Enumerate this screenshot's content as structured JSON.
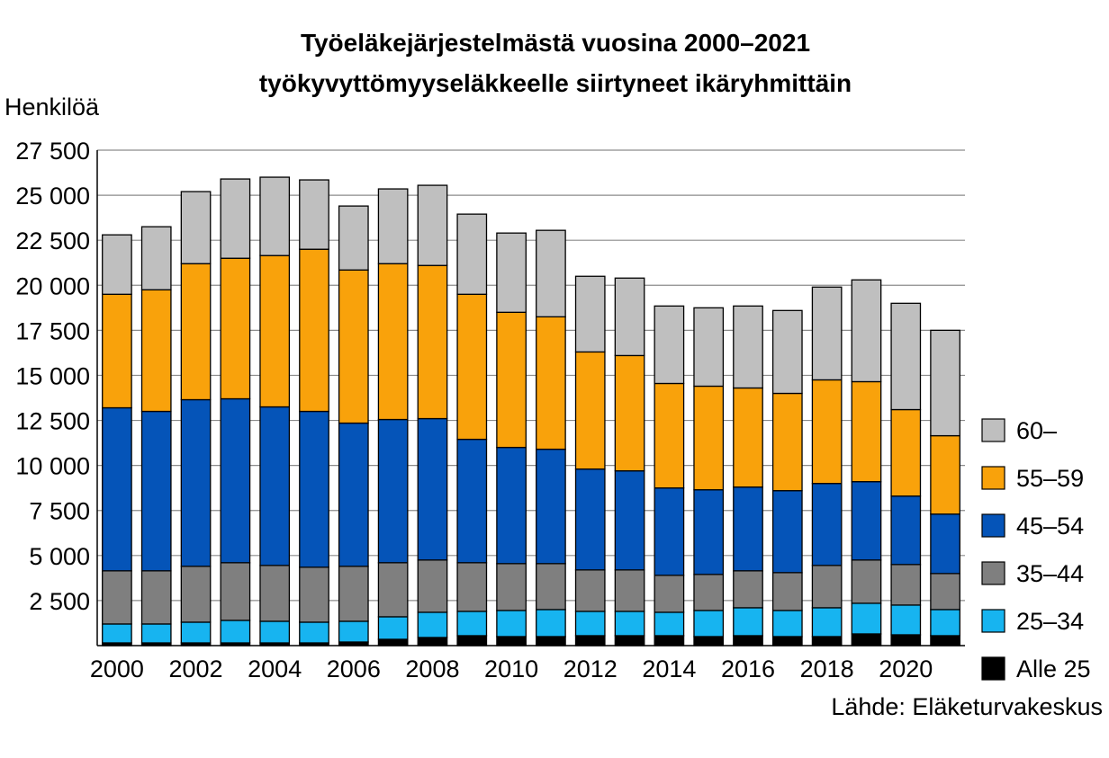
{
  "chart_data": {
    "type": "bar",
    "stacked": true,
    "title_lines": [
      "Työeläkejärjestelmästä vuosina 2000–2021",
      "työkyvyttömyyseläkkeelle siirtyneet ikäryhmittäin"
    ],
    "ylabel": "Henkilöä",
    "xlabel": "",
    "ylim": [
      0,
      27500
    ],
    "ytick_values": [
      2500,
      5000,
      7500,
      10000,
      12500,
      15000,
      17500,
      20000,
      22500,
      25000,
      27500
    ],
    "ytick_labels": [
      "2 500",
      "5 000",
      "7 500",
      "10 000",
      "12 500",
      "15 000",
      "17 500",
      "20 000",
      "22 500",
      "25 000",
      "27 500"
    ],
    "grid": true,
    "legend_position": "right",
    "categories": [
      "2000",
      "2001",
      "2002",
      "2003",
      "2004",
      "2005",
      "2006",
      "2007",
      "2008",
      "2009",
      "2010",
      "2011",
      "2012",
      "2013",
      "2014",
      "2015",
      "2016",
      "2017",
      "2018",
      "2019",
      "2020",
      "2021"
    ],
    "xtick_labels": [
      "2000",
      "",
      "2002",
      "",
      "2004",
      "",
      "2006",
      "",
      "2008",
      "",
      "2010",
      "",
      "2012",
      "",
      "2014",
      "",
      "2016",
      "",
      "2018",
      "",
      "2020",
      ""
    ],
    "series": [
      {
        "name": "Alle 25",
        "color": "#000000",
        "values": [
          150,
          150,
          150,
          150,
          150,
          150,
          200,
          350,
          450,
          550,
          500,
          500,
          550,
          550,
          550,
          500,
          550,
          500,
          500,
          650,
          600,
          550
        ]
      },
      {
        "name": "25–34",
        "color": "#17B4F0",
        "values": [
          1050,
          1050,
          1150,
          1250,
          1200,
          1150,
          1150,
          1250,
          1400,
          1350,
          1450,
          1500,
          1350,
          1350,
          1300,
          1450,
          1550,
          1450,
          1600,
          1700,
          1650,
          1450
        ]
      },
      {
        "name": "35–44",
        "color": "#7F7F7F",
        "values": [
          2950,
          2950,
          3100,
          3200,
          3100,
          3050,
          3050,
          3000,
          2900,
          2700,
          2600,
          2550,
          2300,
          2300,
          2050,
          2000,
          2050,
          2100,
          2350,
          2400,
          2250,
          2000
        ]
      },
      {
        "name": "45–54",
        "color": "#0554B8",
        "values": [
          9050,
          8850,
          9250,
          9100,
          8800,
          8650,
          7950,
          7950,
          7850,
          6850,
          6450,
          6350,
          5600,
          5500,
          4850,
          4700,
          4650,
          4550,
          4550,
          4350,
          3800,
          3300
        ]
      },
      {
        "name": "55–59",
        "color": "#F9A20B",
        "values": [
          6300,
          6750,
          7550,
          7800,
          8400,
          9000,
          8500,
          8650,
          8500,
          8050,
          7500,
          7350,
          6500,
          6400,
          5800,
          5750,
          5500,
          5400,
          5750,
          5550,
          4800,
          4350
        ]
      },
      {
        "name": "60–",
        "color": "#BFBFBF",
        "values": [
          3300,
          3500,
          4000,
          4400,
          4350,
          3850,
          3550,
          4150,
          4450,
          4450,
          4400,
          4800,
          4200,
          4300,
          4300,
          4350,
          4550,
          4600,
          5150,
          5650,
          5900,
          5850
        ]
      }
    ]
  },
  "source": "Lähde: Eläketurvakeskus"
}
